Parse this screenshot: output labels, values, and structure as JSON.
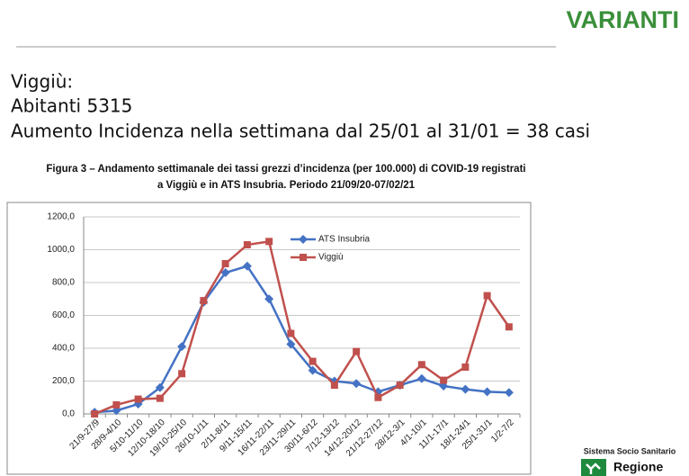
{
  "header": {
    "title": "VARIANTI"
  },
  "text": [
    "Viggiù:",
    "Abitanti 5315",
    "Aumento Incidenza nella settimana dal 25/01 al 31/01 = 38 casi"
  ],
  "caption": [
    "Figura 3 – Andamento settimanale dei tassi grezzi d’incidenza (per 100.000) di COVID-19 registrati",
    "a Viggiù e in ATS Insubria. Periodo 21/09/20-07/02/21"
  ],
  "footer": {
    "org": "Sistema Socio Sanitario",
    "logo": "Regione"
  },
  "chart_data": {
    "type": "line",
    "categories": [
      "21/9-27/9",
      "28/9-4/10",
      "5/10-11/10",
      "12/10-18/10",
      "19/10-25/10",
      "26/10-1/11",
      "2/11-8/11",
      "9/11-15/11",
      "16/11-22/11",
      "23/11-29/11",
      "30/11-6/12",
      "7/12-13/12",
      "14/12-20/12",
      "21/12-27/12",
      "28/12-3/1",
      "4/1-10/1",
      "11/1-17/1",
      "18/1-24/1",
      "25/1-31/1",
      "1/2-7/2"
    ],
    "series": [
      {
        "name": "ATS Insubria",
        "color": "#4472c4",
        "marker": "diamond",
        "values": [
          10,
          20,
          60,
          160,
          410,
          680,
          860,
          900,
          700,
          425,
          265,
          200,
          185,
          135,
          175,
          215,
          170,
          150,
          135,
          130
        ]
      },
      {
        "name": "Viggiù",
        "color": "#c0504d",
        "marker": "square",
        "values": [
          0,
          55,
          90,
          95,
          245,
          690,
          915,
          1030,
          1050,
          490,
          320,
          175,
          380,
          100,
          175,
          300,
          205,
          285,
          720,
          530
        ]
      }
    ],
    "ylim": [
      0,
      1200
    ],
    "yticks": [
      {
        "value": 0,
        "label": "0,0"
      },
      {
        "value": 200,
        "label": "200,0"
      },
      {
        "value": 400,
        "label": "400,0"
      },
      {
        "value": 600,
        "label": "600,0"
      },
      {
        "value": 800,
        "label": "800,0"
      },
      {
        "value": 1000,
        "label": "1000,0"
      },
      {
        "value": 1200,
        "label": "1200,0"
      }
    ],
    "grid": true
  }
}
